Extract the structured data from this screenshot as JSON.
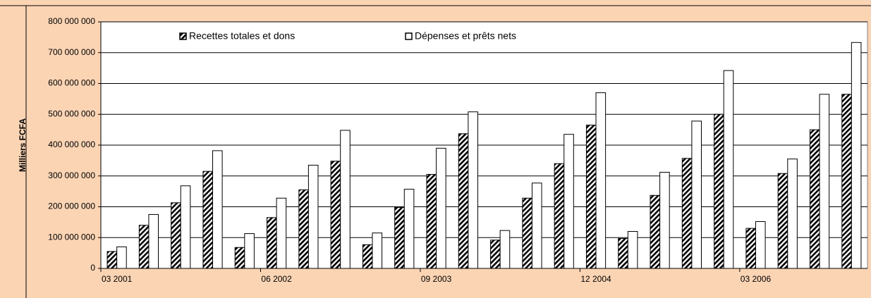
{
  "chart_data": {
    "type": "bar",
    "y_label": "Milliers FCFA",
    "categories": [
      "03 2001",
      null,
      null,
      null,
      null,
      "06 2002",
      null,
      null,
      null,
      null,
      "09 2003",
      null,
      null,
      null,
      null,
      "12 2004",
      null,
      null,
      null,
      null,
      "03 2006",
      null,
      null,
      null
    ],
    "series": [
      {
        "name": "Recettes totales et dons",
        "color": "#000000",
        "values": [
          55000000,
          140000000,
          213000000,
          315000000,
          68000000,
          165000000,
          255000000,
          348000000,
          77000000,
          198000000,
          305000000,
          437000000,
          92000000,
          228000000,
          340000000,
          465000000,
          97000000,
          237000000,
          357000000,
          500000000,
          130000000,
          308000000,
          450000000,
          565000000
        ]
      },
      {
        "name": "Dépenses et prêts nets",
        "color": "#ffffff",
        "values": [
          70000000,
          175000000,
          268000000,
          382000000,
          113000000,
          228000000,
          335000000,
          448000000,
          115000000,
          257000000,
          390000000,
          508000000,
          123000000,
          277000000,
          435000000,
          570000000,
          120000000,
          312000000,
          478000000,
          642000000,
          152000000,
          355000000,
          565000000,
          733000000
        ]
      }
    ],
    "ylim": [
      0,
      800000000
    ],
    "yticks": [
      {
        "value": 0,
        "label": "0"
      },
      {
        "value": 100000000,
        "label": "100 000 000"
      },
      {
        "value": 200000000,
        "label": "200 000 000"
      },
      {
        "value": 300000000,
        "label": "300 000 000"
      },
      {
        "value": 400000000,
        "label": "400 000 000"
      },
      {
        "value": 500000000,
        "label": "500 000 000"
      },
      {
        "value": 600000000,
        "label": "600 000 000"
      },
      {
        "value": 700000000,
        "label": "700 000 000"
      },
      {
        "value": 800000000,
        "label": "800 000 000"
      }
    ],
    "grid": true,
    "legend": "top"
  }
}
